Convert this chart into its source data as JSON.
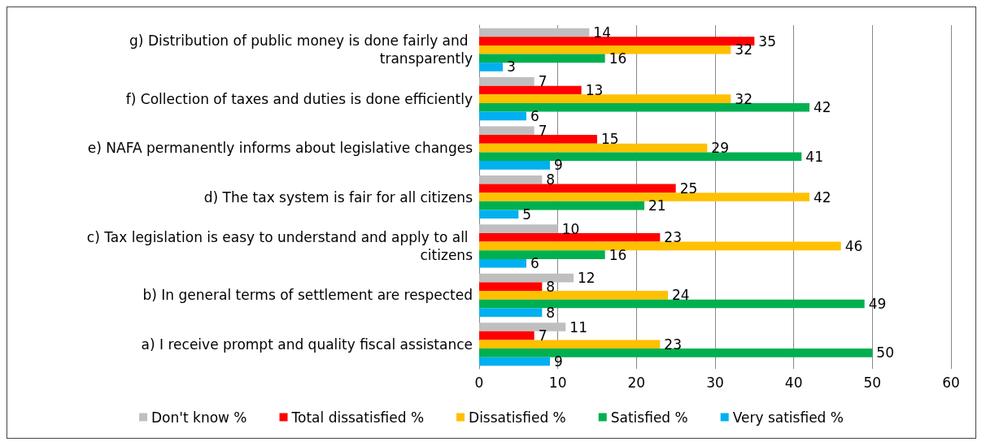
{
  "chart_data": {
    "type": "bar",
    "orientation": "horizontal",
    "categories": [
      "g) Distribution of public money is done fairly and transparently",
      "f) Collection of taxes and duties is done efficiently",
      "e) NAFA permanently informs about legislative changes",
      "d) The tax system is fair for all citizens",
      "c) Tax legislation is easy to understand and apply to all citizens",
      "b) In general terms of settlement are respected",
      "a) I receive prompt and quality fiscal assistance"
    ],
    "series": [
      {
        "name": "Don't know %",
        "color": "#bfbfbf",
        "values": [
          14,
          7,
          7,
          8,
          10,
          12,
          11
        ]
      },
      {
        "name": "Total dissatisfied %",
        "color": "#ff0000",
        "values": [
          35,
          13,
          15,
          25,
          23,
          8,
          7
        ]
      },
      {
        "name": "Dissatisfied %",
        "color": "#ffc000",
        "values": [
          32,
          32,
          29,
          42,
          46,
          24,
          23
        ]
      },
      {
        "name": "Satisfied %",
        "color": "#00b050",
        "values": [
          16,
          42,
          41,
          21,
          16,
          49,
          50
        ]
      },
      {
        "name": "Very satisfied %",
        "color": "#00b0f0",
        "values": [
          3,
          6,
          9,
          5,
          6,
          8,
          9
        ]
      }
    ],
    "xlim": [
      0,
      60
    ],
    "xticks": [
      0,
      10,
      20,
      30,
      40,
      50,
      60
    ],
    "grid": "x",
    "legend": "bottom",
    "data_labels": true
  }
}
